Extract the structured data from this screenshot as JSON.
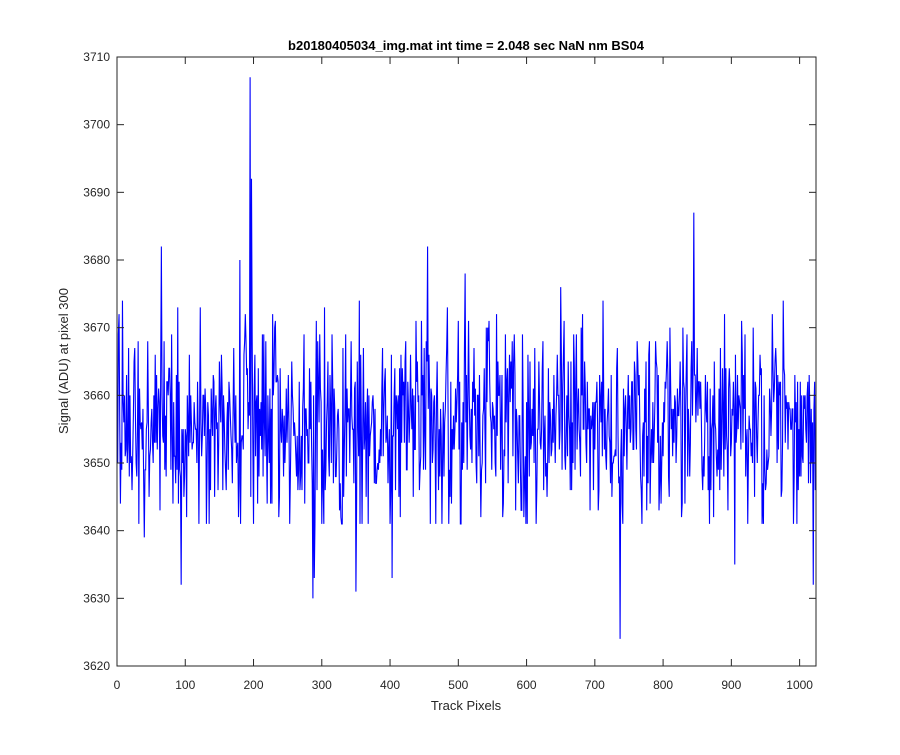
{
  "chart_data": {
    "type": "line",
    "title": "b20180405034_img.mat int time = 2.048 sec  NaN nm BS04",
    "xlabel": "Track Pixels",
    "ylabel": "Signal (ADU) at pixel 300",
    "xlim": [
      0,
      1024
    ],
    "ylim": [
      3620,
      3710
    ],
    "xticks": [
      0,
      100,
      200,
      300,
      400,
      500,
      600,
      700,
      800,
      900,
      1000
    ],
    "yticks": [
      3620,
      3630,
      3640,
      3650,
      3660,
      3670,
      3680,
      3690,
      3700,
      3710
    ],
    "grid": false,
    "box": true,
    "line_color": "#0000ff",
    "series": [
      {
        "x": [
          1,
          40,
          65,
          94,
          180,
          195,
          197,
          287,
          289,
          350,
          403,
          455,
          510,
          650,
          737,
          740,
          845,
          905,
          1020,
          1024
        ],
        "y": [
          3650,
          3639,
          3682,
          3632,
          3680,
          3707,
          3692,
          3630,
          3633,
          3631,
          3633,
          3682,
          3678,
          3676,
          3624,
          3644,
          3687,
          3635,
          3632,
          3648
        ],
        "extremes_note": "",
        "noise_mean": 3656,
        "noise_sd": 7.5
      }
    ]
  }
}
